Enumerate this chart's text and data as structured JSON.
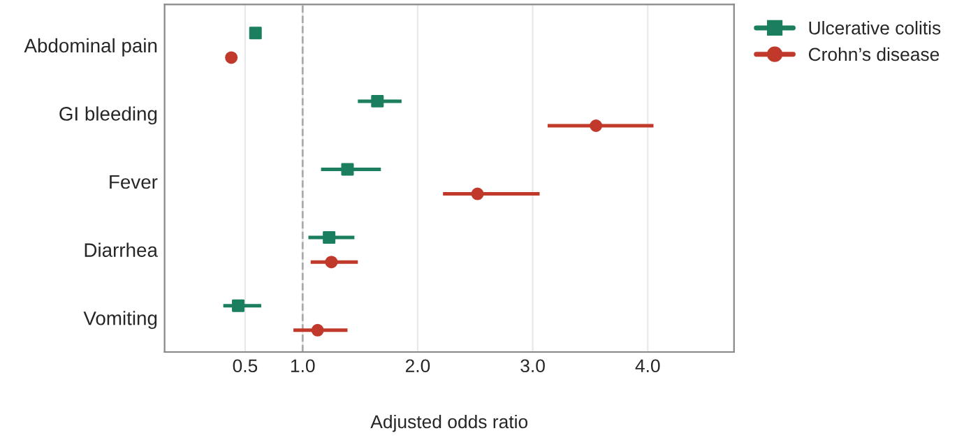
{
  "chart_data": {
    "type": "scatter",
    "orientation": "horizontal",
    "xlabel": "Adjusted odds ratio",
    "categories": [
      "Abdominal pain",
      "GI bleeding",
      "Fever",
      "Diarrhea",
      "Vomiting"
    ],
    "series": [
      {
        "name": "Ulcerative colitis",
        "color": "#1b7f5f",
        "marker": "square",
        "values": [
          0.59,
          1.65,
          1.39,
          1.23,
          0.44
        ],
        "errors": [
          [
            0.55,
            0.63
          ],
          [
            1.48,
            1.86
          ],
          [
            1.16,
            1.68
          ],
          [
            1.05,
            1.45
          ],
          [
            0.31,
            0.64
          ]
        ]
      },
      {
        "name": "Crohn’s disease",
        "color": "#c0392b",
        "marker": "circle",
        "values": [
          0.38,
          3.55,
          2.52,
          1.25,
          1.13
        ],
        "errors": [
          null,
          [
            3.13,
            4.05
          ],
          [
            2.22,
            3.06
          ],
          [
            1.07,
            1.48
          ],
          [
            0.92,
            1.39
          ]
        ]
      }
    ],
    "xlim": [
      -0.2,
      4.75
    ],
    "xticks": [
      0.5,
      {
        "value": 1,
        "label": "1.0"
      },
      {
        "value": 2,
        "label": "2.0"
      },
      {
        "value": 3,
        "label": "3.0"
      },
      {
        "value": 4,
        "label": "4.0"
      }
    ],
    "ref_lines": [
      {
        "axis": "x",
        "value": 1,
        "color": "#aaaaaa",
        "line_style": "dashed"
      }
    ],
    "grid": "x",
    "legend": "top right"
  }
}
